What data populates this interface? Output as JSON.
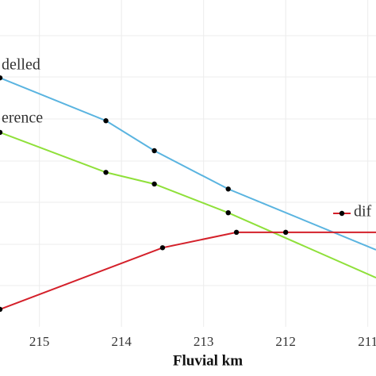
{
  "chart_data": {
    "type": "line",
    "x_label": "Fluvial km",
    "xlim": [
      215.48,
      210.9
    ],
    "xticks": [
      215,
      214,
      213,
      212,
      211
    ],
    "ylim": [
      0,
      7.85
    ],
    "grid": true,
    "series": [
      {
        "name": "delled",
        "color": "#5ab4e0",
        "x": [
          215.48,
          214.19,
          213.6,
          212.7,
          210.9
        ],
        "values": [
          5.98,
          4.95,
          4.23,
          3.31,
          1.85
        ]
      },
      {
        "name": "erence",
        "color": "#8fe03a",
        "x": [
          215.48,
          214.19,
          213.6,
          212.7,
          210.9
        ],
        "values": [
          4.67,
          3.71,
          3.43,
          2.74,
          1.18
        ]
      },
      {
        "name": "dif",
        "color": "#d4202a",
        "x": [
          215.48,
          213.5,
          212.6,
          212.0,
          210.9
        ],
        "values": [
          0.42,
          1.9,
          2.27,
          2.27,
          2.27
        ]
      }
    ]
  }
}
